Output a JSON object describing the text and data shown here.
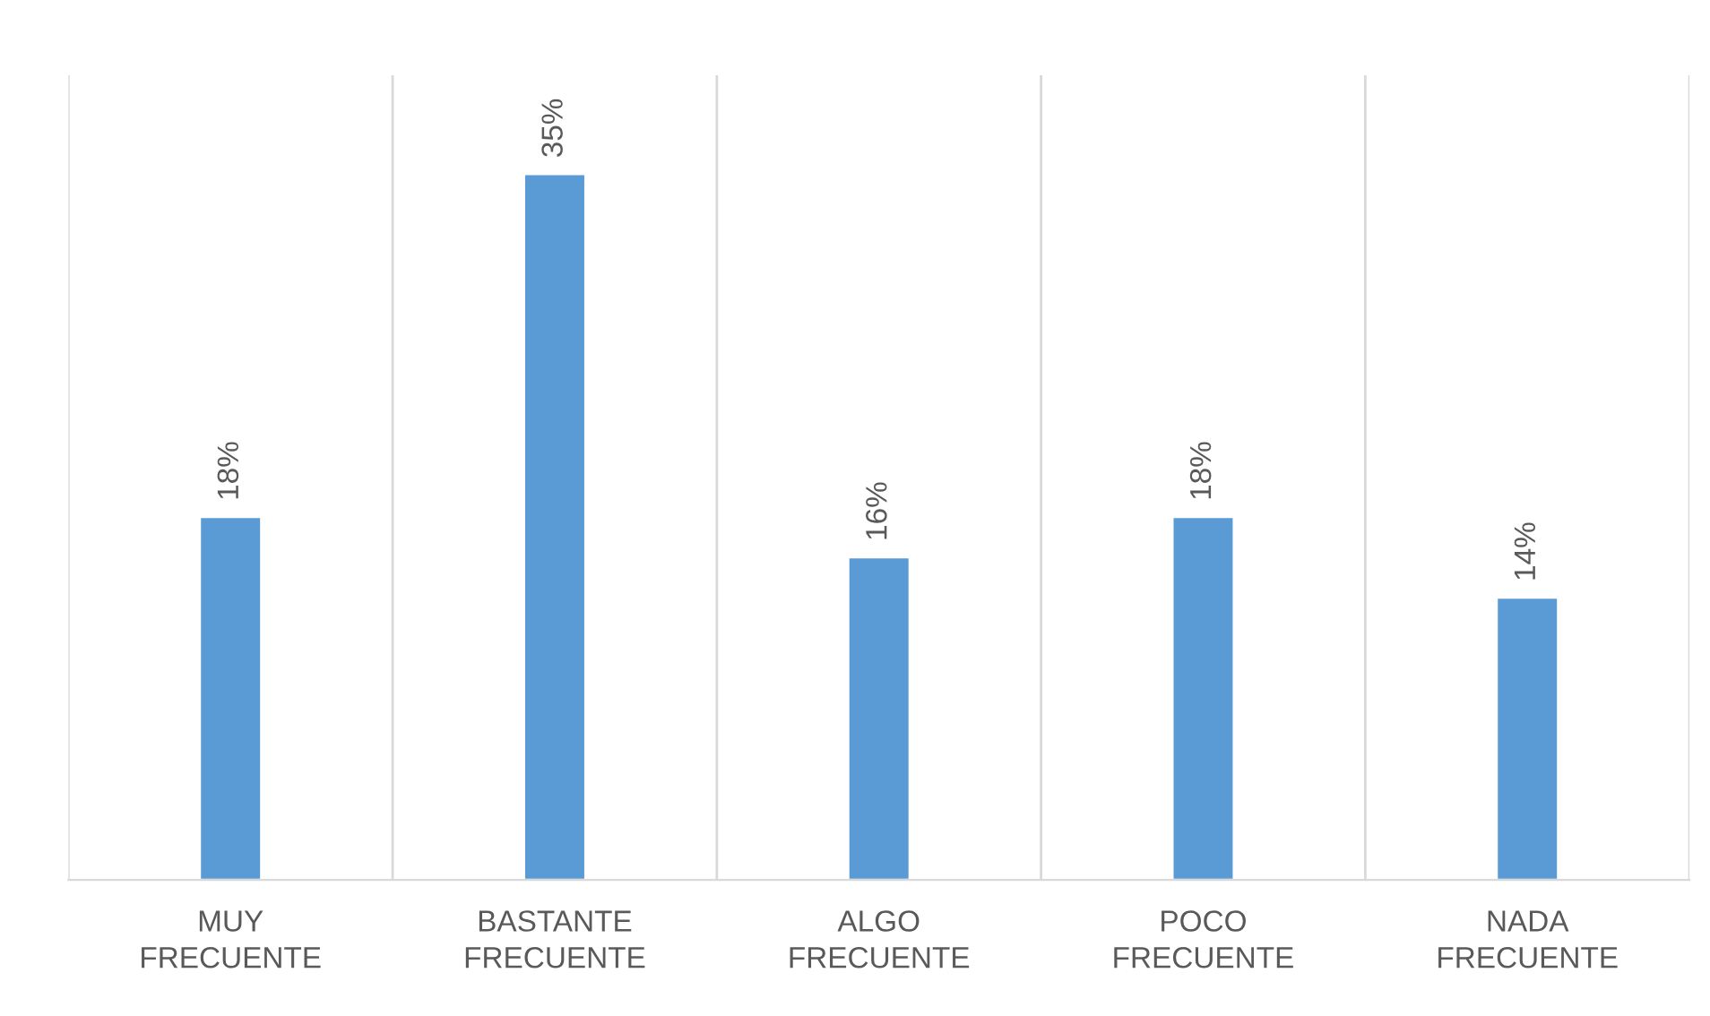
{
  "chart_data": {
    "type": "bar",
    "categories": [
      "MUY\nFRECUENTE",
      "BASTANTE\nFRECUENTE",
      "ALGO\nFRECUENTE",
      "POCO\nFRECUENTE",
      "NADA\nFRECUENTE"
    ],
    "values": [
      18,
      35,
      16,
      18,
      14
    ],
    "value_labels": [
      "18%",
      "35%",
      "16%",
      "18%",
      "14%"
    ],
    "color": "#5b9bd5",
    "grid": "x",
    "legend": false
  }
}
